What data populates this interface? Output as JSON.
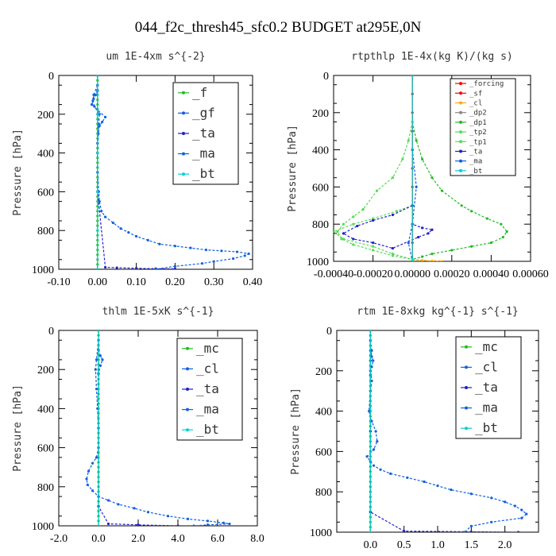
{
  "figure_title": "044_f2c_thresh45_sfc0.2  BUDGET at295E,0N",
  "colors": {
    "black": "#000000",
    "red": "#ff0000",
    "green": "#22bb22",
    "blue": "#1060e0",
    "darkblue": "#2020cc",
    "cyan": "#00d0d0",
    "orange": "#ffaa00",
    "lightgreen": "#55dd55"
  },
  "chart_data": [
    {
      "type": "line",
      "title": "um  1E-4xm s^{-2}",
      "ylabel": "Pressure [hPa]",
      "xlim": [
        -0.1,
        0.4
      ],
      "ylim": [
        1000,
        0
      ],
      "xticks": [
        "-0.10",
        "0.00",
        "0.10",
        "0.20",
        "0.30",
        "0.40"
      ],
      "yticks": [
        "0",
        "200",
        "400",
        "600",
        "800",
        "1000"
      ],
      "legend": [
        "_f",
        "_gf",
        "_ta",
        "_ma",
        "_bt"
      ],
      "series": [
        {
          "name": "_f",
          "color": "#22bb22",
          "x": [
            0,
            0,
            0,
            0,
            0,
            0,
            0,
            0,
            0,
            0,
            0,
            0,
            0,
            0,
            0,
            0,
            0,
            0,
            0,
            0,
            0,
            0,
            0,
            0,
            0,
            0,
            0,
            0,
            0,
            0,
            0,
            0,
            0,
            0,
            0,
            0,
            0,
            0,
            0,
            0,
            0
          ],
          "y": [
            0,
            25,
            50,
            75,
            100,
            125,
            150,
            175,
            200,
            225,
            250,
            275,
            300,
            325,
            350,
            375,
            400,
            425,
            450,
            475,
            500,
            525,
            550,
            575,
            600,
            625,
            650,
            675,
            700,
            725,
            750,
            775,
            800,
            825,
            850,
            875,
            900,
            925,
            950,
            975,
            1000
          ]
        },
        {
          "name": "_gf",
          "color": "#1060e0",
          "x": [
            0.0,
            -0.005,
            -0.01,
            -0.015,
            0.02,
            0.012,
            0.005,
            0.002,
            0.0,
            0.0
          ],
          "y": [
            80,
            100,
            120,
            150,
            215,
            240,
            260,
            300,
            350,
            400
          ]
        },
        {
          "name": "_ta",
          "color": "#2020cc",
          "x": [
            0.0,
            0.0,
            0.0,
            0.0,
            0.02,
            0.05,
            0.1,
            0.15,
            0.2
          ],
          "y": [
            0,
            200,
            400,
            600,
            990,
            992,
            995,
            997,
            998
          ]
        },
        {
          "name": "_ma",
          "color": "#1060e0",
          "x": [
            0,
            -0.01,
            -0.012,
            -0.008,
            0.005,
            0.003,
            0.002,
            0.0,
            0.0,
            0.003,
            0.005,
            0.01,
            0.02,
            0.04,
            0.06,
            0.08,
            0.1,
            0.13,
            0.16,
            0.2,
            0.24,
            0.28,
            0.32,
            0.36,
            0.39,
            0.38,
            0.35,
            0.3,
            0.27,
            0.2,
            0.15
          ],
          "y": [
            50,
            100,
            130,
            160,
            200,
            250,
            300,
            400,
            500,
            600,
            650,
            700,
            730,
            760,
            790,
            810,
            830,
            850,
            870,
            880,
            890,
            900,
            905,
            910,
            920,
            930,
            945,
            960,
            970,
            985,
            1000
          ]
        },
        {
          "name": "_bt",
          "color": "#00d0d0",
          "x": [
            0.0,
            0.0,
            0.0,
            0.0,
            0.0,
            0.0
          ],
          "y": [
            0,
            200,
            400,
            600,
            800,
            1000
          ]
        }
      ]
    },
    {
      "type": "line",
      "title": "rtpthlp  1E-4x(kg K)/(kg s)",
      "ylabel": "Pressure [hPa]",
      "xlim": [
        -0.0004,
        0.0006
      ],
      "ylim": [
        1000,
        0
      ],
      "xticks": [
        "-0.00040",
        "-0.00020",
        "0.00000",
        "0.00020",
        "0.00040",
        "0.00060"
      ],
      "yticks": [
        "0",
        "200",
        "400",
        "600",
        "800",
        "1000"
      ],
      "legend": [
        "_forcing",
        "_sf",
        "_cl",
        "_dp2",
        "_dp1",
        "_tp2",
        "_tp1",
        "_ta",
        "_ma",
        "_bt"
      ],
      "series": [
        {
          "name": "_forcing",
          "color": "#ff0000",
          "x": [
            0,
            0,
            0,
            0,
            0,
            0,
            0,
            0,
            0,
            0,
            0
          ],
          "y": [
            0,
            100,
            200,
            300,
            400,
            500,
            600,
            700,
            800,
            900,
            1000
          ]
        },
        {
          "name": "_sf",
          "color": "#ff0000",
          "x": [
            0.0,
            0.0
          ],
          "y": [
            0,
            1000
          ]
        },
        {
          "name": "_cl",
          "color": "#ffaa00",
          "x": [
            0.0,
            5e-05,
            0.0001,
            0.00015
          ],
          "y": [
            990,
            995,
            998,
            1000
          ]
        },
        {
          "name": "_dp1",
          "color": "#22bb22",
          "x": [
            0,
            2e-05,
            5e-05,
            0.0001,
            0.00015,
            0.00025,
            0.0003,
            0.00038,
            0.00045,
            0.00048,
            0.00046,
            0.0004,
            0.0003,
            0.0002,
            0.0001,
            5e-05,
            0
          ],
          "y": [
            250,
            350,
            450,
            550,
            620,
            700,
            730,
            770,
            800,
            840,
            870,
            900,
            920,
            940,
            960,
            975,
            990
          ]
        },
        {
          "name": "_tp2",
          "color": "#55dd55",
          "x": [
            0,
            -2e-05,
            -5e-05,
            -0.0001,
            -0.00018,
            -0.00025,
            -0.0003,
            -0.00035,
            -0.00038,
            -0.00036,
            -0.0003,
            -0.0002,
            -0.0001,
            0
          ],
          "y": [
            250,
            350,
            450,
            550,
            620,
            720,
            760,
            800,
            840,
            880,
            910,
            940,
            970,
            990
          ]
        },
        {
          "name": "_tp1",
          "color": "#55dd55",
          "x": [
            0,
            -8e-05,
            -0.0002,
            -0.0003,
            -0.0004,
            -0.00035,
            -0.0002,
            -0.0001,
            0
          ],
          "y": [
            700,
            730,
            770,
            800,
            840,
            880,
            920,
            960,
            990
          ]
        },
        {
          "name": "_ta",
          "color": "#2020cc",
          "x": [
            0,
            -0.0001,
            -0.0002,
            -0.00028,
            -0.00035,
            -0.0003,
            -0.0002,
            -0.0001,
            3e-05,
            8e-05,
            0.0001,
            5e-05,
            0
          ],
          "y": [
            700,
            750,
            780,
            810,
            850,
            880,
            900,
            930,
            870,
            850,
            830,
            820,
            800
          ]
        },
        {
          "name": "_ma",
          "color": "#1060e0",
          "x": [
            0,
            2e-05,
            0.0,
            -2e-05,
            0
          ],
          "y": [
            400,
            600,
            800,
            900,
            1000
          ]
        },
        {
          "name": "_bt",
          "color": "#00d0d0",
          "x": [
            0,
            0
          ],
          "y": [
            0,
            1000
          ]
        }
      ]
    },
    {
      "type": "line",
      "title": "thlm  1E-5xK s^{-1}",
      "ylabel": "Pressure [hPa]",
      "xlim": [
        -2.0,
        8.0
      ],
      "ylim": [
        1000,
        0
      ],
      "xticks": [
        "-2.0",
        "0.0",
        "2.0",
        "4.0",
        "6.0",
        "8.0"
      ],
      "yticks": [
        "0",
        "200",
        "400",
        "600",
        "800",
        "1000"
      ],
      "legend": [
        "_mc",
        "_cl",
        "_ta",
        "_ma",
        "_bt"
      ],
      "series": [
        {
          "name": "_mc",
          "color": "#22bb22",
          "x": [
            0,
            0,
            0,
            0,
            0,
            0,
            0,
            0,
            0,
            0,
            0,
            0,
            0,
            0,
            0,
            0,
            0,
            0,
            0,
            0,
            0,
            0,
            0,
            0,
            0,
            0,
            0,
            0,
            0,
            0,
            0,
            0,
            0,
            0,
            0,
            0,
            0,
            0,
            0,
            0,
            0
          ],
          "y": [
            0,
            25,
            50,
            75,
            100,
            125,
            150,
            175,
            200,
            225,
            250,
            275,
            300,
            325,
            350,
            375,
            400,
            425,
            450,
            475,
            500,
            525,
            550,
            575,
            600,
            625,
            650,
            675,
            700,
            725,
            750,
            775,
            800,
            825,
            850,
            875,
            900,
            925,
            950,
            975,
            1000
          ]
        },
        {
          "name": "_cl",
          "color": "#1060e0",
          "x": [
            0.0,
            0.1,
            0.2,
            0.1,
            0.0
          ],
          "y": [
            100,
            130,
            150,
            180,
            220
          ]
        },
        {
          "name": "_ta",
          "color": "#2020cc",
          "x": [
            0,
            0,
            0,
            0.5,
            2.0,
            4.0
          ],
          "y": [
            0,
            500,
            900,
            990,
            995,
            1000
          ]
        },
        {
          "name": "_ma",
          "color": "#1060e0",
          "x": [
            0,
            -0.1,
            -0.15,
            -0.1,
            -0.05,
            0,
            0,
            -0.1,
            -0.3,
            -0.5,
            -0.6,
            -0.55,
            -0.3,
            0,
            0.5,
            1.0,
            1.8,
            2.5,
            3.5,
            4.5,
            5.5,
            6.3,
            6.6,
            5.5,
            4.8
          ],
          "y": [
            50,
            150,
            200,
            300,
            400,
            500,
            600,
            650,
            680,
            720,
            760,
            790,
            820,
            850,
            870,
            890,
            910,
            930,
            950,
            965,
            975,
            985,
            990,
            995,
            1000
          ]
        },
        {
          "name": "_bt",
          "color": "#00d0d0",
          "x": [
            0,
            0
          ],
          "y": [
            0,
            1000
          ]
        }
      ]
    },
    {
      "type": "line",
      "title": "rtm  1E-8xkg kg^{-1} s^{-1}",
      "ylabel": "Pressure [hPa]",
      "xlim": [
        -0.5,
        2.5
      ],
      "ylim": [
        1000,
        0
      ],
      "xticks": [
        "0.0",
        "0.5",
        "1.0",
        "1.5",
        "2.0"
      ],
      "yticks": [
        "0",
        "200",
        "400",
        "600",
        "800",
        "1000"
      ],
      "legend": [
        "_mc",
        "_cl",
        "_ta",
        "_ma",
        "_bt"
      ],
      "series": [
        {
          "name": "_mc",
          "color": "#22bb22",
          "x": [
            0,
            0,
            0,
            0,
            0,
            0,
            0,
            0,
            0,
            0,
            0,
            0,
            0,
            0,
            0,
            0,
            0,
            0,
            0,
            0,
            0,
            0,
            0,
            0,
            0,
            0,
            0,
            0,
            0,
            0,
            0,
            0,
            0,
            0,
            0,
            0,
            0,
            0,
            0,
            0,
            0
          ],
          "y": [
            0,
            25,
            50,
            75,
            100,
            125,
            150,
            175,
            200,
            225,
            250,
            275,
            300,
            325,
            350,
            375,
            400,
            425,
            450,
            475,
            500,
            525,
            550,
            575,
            600,
            625,
            650,
            675,
            700,
            725,
            750,
            775,
            800,
            825,
            850,
            875,
            900,
            925,
            950,
            975,
            1000
          ]
        },
        {
          "name": "_cl",
          "color": "#1060e0",
          "x": [
            0.0,
            0.02,
            0.04,
            0.02,
            0.0
          ],
          "y": [
            100,
            130,
            150,
            180,
            220
          ]
        },
        {
          "name": "_ta",
          "color": "#2020cc",
          "x": [
            0,
            0,
            0,
            0.5,
            1.5,
            2.2
          ],
          "y": [
            0,
            500,
            900,
            995,
            998,
            1000
          ]
        },
        {
          "name": "_ma",
          "color": "#1060e0",
          "x": [
            0,
            0.02,
            0.0,
            0.0,
            0.02,
            0.0,
            -0.02,
            0.02,
            0.08,
            0.1,
            0.05,
            -0.05,
            0.0,
            0.05,
            0.15,
            0.3,
            0.55,
            0.8,
            1.0,
            1.2,
            1.5,
            1.8,
            2.0,
            2.15,
            2.25,
            2.32,
            2.25,
            1.8,
            1.5,
            1.4
          ],
          "y": [
            50,
            100,
            150,
            200,
            250,
            300,
            400,
            450,
            500,
            550,
            590,
            625,
            650,
            670,
            690,
            710,
            730,
            750,
            770,
            790,
            810,
            830,
            850,
            870,
            890,
            910,
            930,
            950,
            970,
            1000
          ]
        },
        {
          "name": "_bt",
          "color": "#00d0d0",
          "x": [
            0,
            0
          ],
          "y": [
            0,
            1000
          ]
        }
      ]
    }
  ]
}
